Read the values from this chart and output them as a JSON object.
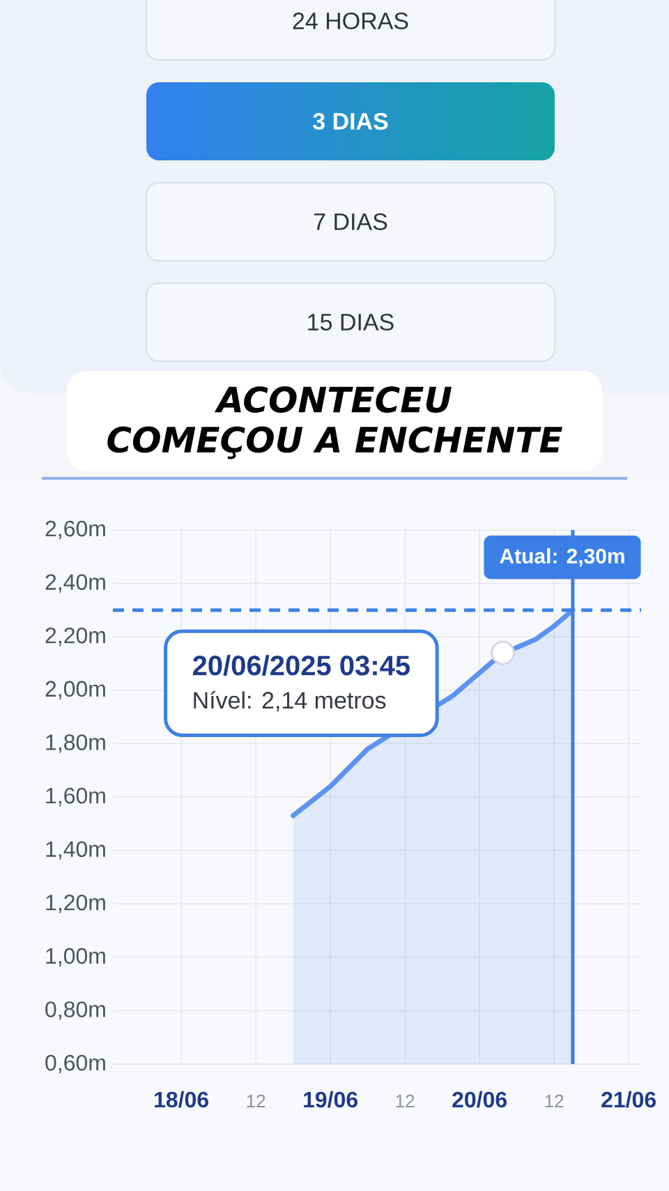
{
  "chart_data": {
    "type": "area",
    "series": [
      {
        "color": "#5b93ee",
        "x": [
          "2025-06-18T18:00",
          "2025-06-19T00:00",
          "2025-06-19T06:00",
          "2025-06-19T19:45",
          "2025-06-20T03:45",
          "2025-06-20T06:00",
          "2025-06-20T09:00",
          "2025-06-20T12:00",
          "2025-06-20T15:00"
        ],
        "values": [
          1.53,
          1.64,
          1.78,
          1.98,
          2.14,
          2.16,
          2.19,
          2.24,
          2.3
        ]
      },
      {
        "type": "scatter",
        "color": "#ffffff",
        "x": [
          "2025-06-20T03:45"
        ],
        "values": [
          2.14
        ]
      }
    ],
    "xlim": [
      "2025-06-17T13:00",
      "2025-06-21T02:00"
    ],
    "xticks": [
      {
        "value": "2025-06-18",
        "label": "18/06"
      },
      {
        "value": "2025-06-18T12:00",
        "label": "12"
      },
      {
        "value": "2025-06-19",
        "label": "19/06"
      },
      {
        "value": "2025-06-19T12:00",
        "label": "12"
      },
      {
        "value": "2025-06-20",
        "label": "20/06"
      },
      {
        "value": "2025-06-20T12:00",
        "label": "12"
      },
      {
        "value": "2025-06-21",
        "label": "21/06"
      }
    ],
    "ylim": [
      0.6,
      2.6
    ],
    "yticks": [
      {
        "value": 0.6,
        "label": "0,60m"
      },
      {
        "value": 0.8,
        "label": "0,80m"
      },
      {
        "value": 1.0,
        "label": "1,00m"
      },
      {
        "value": 1.2,
        "label": "1,20m"
      },
      {
        "value": 1.4,
        "label": "1,40m"
      },
      {
        "value": 1.6,
        "label": "1,60m"
      },
      {
        "value": 1.8,
        "label": "1,80m"
      },
      {
        "value": 2.0,
        "label": "2,00m"
      },
      {
        "value": 2.2,
        "label": "2,20m"
      },
      {
        "value": 2.4,
        "label": "2,40m"
      },
      {
        "value": 2.6,
        "label": "2,60m"
      }
    ],
    "grid": true,
    "ref_lines": [
      {
        "axis": "x",
        "value": "2025-06-20T15:00",
        "color": "#3b7fe6"
      },
      {
        "axis": "y",
        "value": 2.3,
        "label": "Atual: 2,30m",
        "color": "#3b7fe6",
        "line_style": "dashed"
      }
    ],
    "annotations": [
      "24 HORAS",
      "3 DIAS",
      "7 DIAS",
      "15 DIAS",
      "ACONTECEU",
      "COMEÇOU A ENCHENTE",
      "20/06/2025 03:45",
      "Nível: 2,14 metros"
    ]
  }
}
